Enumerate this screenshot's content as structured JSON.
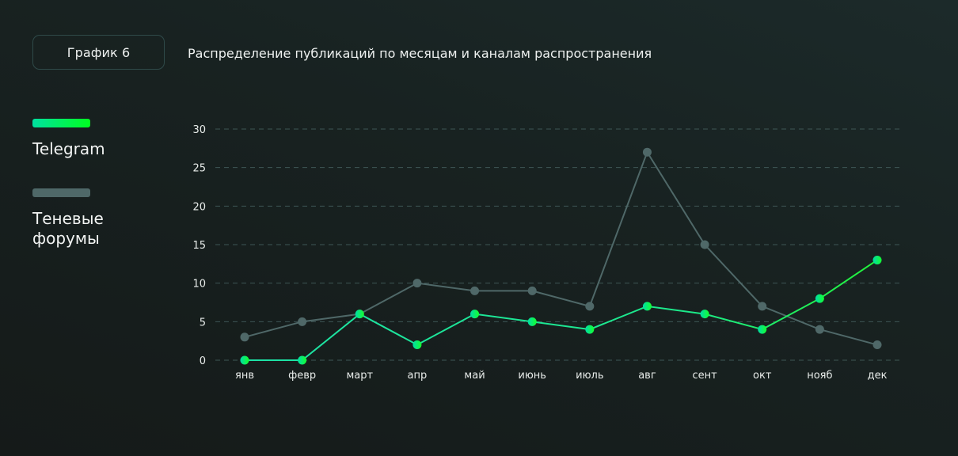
{
  "header": {
    "badge": "График 6",
    "title": "Распределение публикаций по месяцам и каналам распространения"
  },
  "legend": [
    {
      "label": "Telegram",
      "color_start": "#00e0a0",
      "color_end": "#00ff20"
    },
    {
      "label": "Теневые форумы",
      "color": "#4f6868"
    }
  ],
  "chart_data": {
    "type": "line",
    "title": "Распределение публикаций по месяцам и каналам распространения",
    "categories": [
      "янв",
      "февр",
      "март",
      "апр",
      "май",
      "июнь",
      "июль",
      "авг",
      "сент",
      "окт",
      "нояб",
      "дек"
    ],
    "series": [
      {
        "name": "Telegram",
        "values": [
          0,
          0,
          6,
          2,
          6,
          5,
          4,
          7,
          6,
          4,
          8,
          13
        ],
        "color": "#1de9a0"
      },
      {
        "name": "Теневые форумы",
        "values": [
          3,
          5,
          6,
          10,
          9,
          9,
          7,
          27,
          15,
          7,
          4,
          2
        ],
        "color": "#4f6868"
      }
    ],
    "yticks": [
      0,
      5,
      10,
      15,
      20,
      25,
      30
    ],
    "ylim": [
      0,
      30
    ],
    "xlabel": "",
    "ylabel": "",
    "grid": "horizontal-dashed",
    "legend_position": "left"
  }
}
